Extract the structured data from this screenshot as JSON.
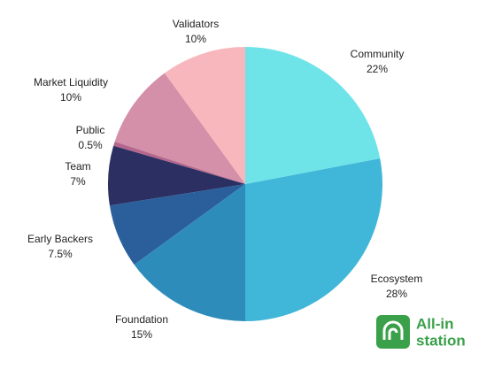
{
  "chart_data": {
    "type": "pie",
    "categories": [
      "Community",
      "Ecosystem",
      "Foundation",
      "Early Backers",
      "Team",
      "Public",
      "Market Liquidity",
      "Validators"
    ],
    "values": [
      22,
      28,
      15,
      7.5,
      7,
      0.5,
      10,
      10
    ],
    "value_labels": [
      "22%",
      "28%",
      "15%",
      "7.5%",
      "7%",
      "0.5%",
      "10%",
      "10%"
    ],
    "colors": [
      "#6ee4e8",
      "#40b6d8",
      "#2e8cbb",
      "#2b5f9b",
      "#2b2f62",
      "#b5668c",
      "#d48fa9",
      "#f8b6bd"
    ]
  },
  "logo": {
    "line1": "All-in",
    "line2": "station"
  }
}
